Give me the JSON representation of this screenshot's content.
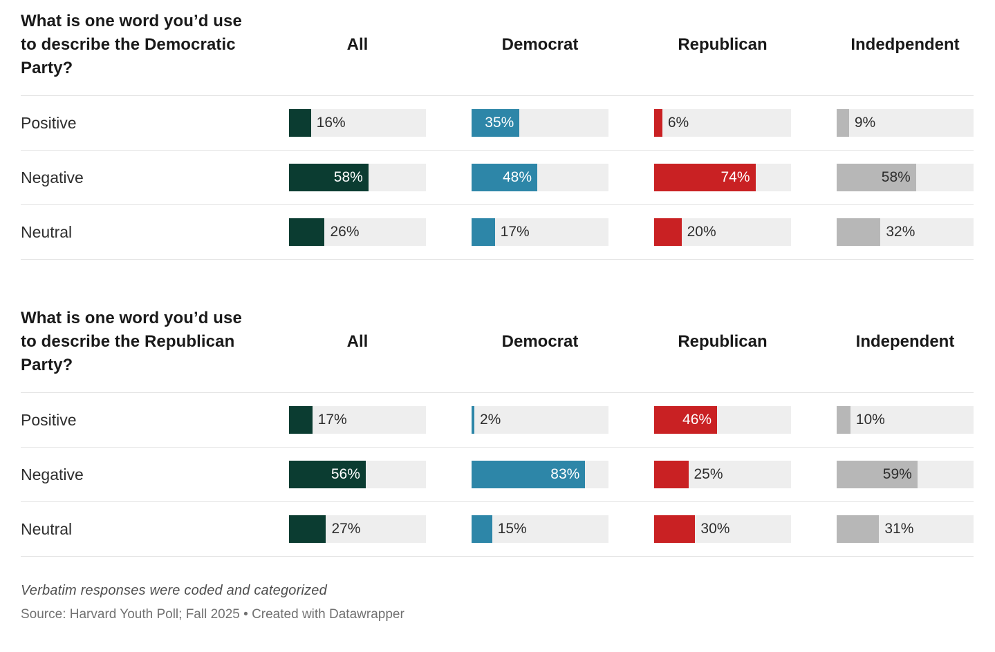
{
  "colors": {
    "all": "#0b3c31",
    "democrat": "#2d86a8",
    "republican": "#c92123",
    "independent": "#b7b7b7",
    "track": "#eeeeee",
    "inside_label_on_gray": "#2d2d2d",
    "inside_label_on_color": "#ffffff"
  },
  "footer": {
    "notes": "Verbatim responses were coded and categorized",
    "source": "Source: Harvard Youth Poll; Fall 2025 • Created with Datawrapper"
  },
  "chart_data": [
    {
      "type": "bar",
      "title": "What is one word you’d use to describe the Democratic Party?",
      "columns": [
        "All",
        "Democrat",
        "Republican",
        "Indedpendent"
      ],
      "rows": [
        "Positive",
        "Negative",
        "Neutral"
      ],
      "series": [
        {
          "name": "Positive",
          "values": [
            16,
            35,
            6,
            9
          ]
        },
        {
          "name": "Negative",
          "values": [
            58,
            48,
            74,
            58
          ]
        },
        {
          "name": "Neutral",
          "values": [
            26,
            17,
            20,
            32
          ]
        }
      ],
      "unit": "%",
      "xlim": [
        0,
        100
      ],
      "legend": "none",
      "grid": "off"
    },
    {
      "type": "bar",
      "title": "What is one word you’d use to describe the Republican Party?",
      "columns": [
        "All",
        "Democrat",
        "Republican",
        "Independent"
      ],
      "rows": [
        "Positive",
        "Negative",
        "Neutral"
      ],
      "series": [
        {
          "name": "Positive",
          "values": [
            17,
            2,
            46,
            10
          ]
        },
        {
          "name": "Negative",
          "values": [
            56,
            83,
            25,
            59
          ]
        },
        {
          "name": "Neutral",
          "values": [
            27,
            15,
            30,
            31
          ]
        }
      ],
      "unit": "%",
      "xlim": [
        0,
        100
      ],
      "legend": "none",
      "grid": "off"
    }
  ]
}
